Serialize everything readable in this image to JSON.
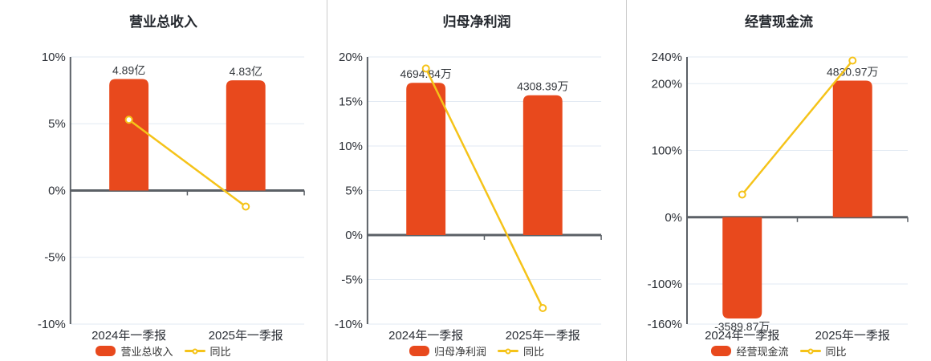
{
  "colors": {
    "bar": "#e8491d",
    "line": "#f5c319",
    "grid_line": "#e2eaf3",
    "axis_line": "#5b6066",
    "zero_line": "#5b6066",
    "separator": "#cccccc",
    "title_text": "#24282e",
    "tick_text": "#2b2f36",
    "value_text": "#34383d",
    "legend_text": "#333333",
    "background": "#ffffff"
  },
  "chart_data": [
    {
      "type": "bar",
      "title": "营业总收入",
      "categories": [
        "2024年一季报",
        "2025年一季报"
      ],
      "bar_series": {
        "name": "营业总收入",
        "value_labels": [
          "4.89亿",
          "4.83亿"
        ],
        "plotted_pct": [
          8.35,
          8.25
        ]
      },
      "line_series": {
        "name": "同比",
        "values_pct": [
          5.3,
          -1.2
        ]
      },
      "y_axis": {
        "unit": "%",
        "min": -10,
        "max": 10,
        "ticks": [
          -10,
          -5,
          0,
          5,
          10
        ]
      },
      "legend": [
        "营业总收入",
        "同比"
      ],
      "grid": true,
      "legend_position": "bottom"
    },
    {
      "type": "bar",
      "title": "归母净利润",
      "categories": [
        "2024年一季报",
        "2025年一季报"
      ],
      "bar_series": {
        "name": "归母净利润",
        "value_labels": [
          "4694.84万",
          "4308.39万"
        ],
        "plotted_pct": [
          17.1,
          15.7
        ]
      },
      "line_series": {
        "name": "同比",
        "values_pct": [
          18.7,
          -8.2
        ]
      },
      "y_axis": {
        "unit": "%",
        "min": -10,
        "max": 20,
        "ticks": [
          -10,
          -5,
          0,
          5,
          10,
          15,
          20
        ]
      },
      "legend": [
        "归母净利润",
        "同比"
      ],
      "grid": true,
      "legend_position": "bottom"
    },
    {
      "type": "bar",
      "title": "经营现金流",
      "categories": [
        "2024年一季报",
        "2025年一季报"
      ],
      "bar_series": {
        "name": "经营现金流",
        "value_labels": [
          "-3589.87万",
          "4830.97万"
        ],
        "plotted_pct": [
          -151.6,
          204.6
        ]
      },
      "line_series": {
        "name": "同比",
        "values_pct": [
          34,
          234.6
        ]
      },
      "y_axis": {
        "unit": "%",
        "min": -160,
        "max": 240,
        "ticks": [
          -160,
          -100,
          0,
          100,
          200,
          240
        ]
      },
      "legend": [
        "经营现金流",
        "同比"
      ],
      "grid": true,
      "legend_position": "bottom"
    }
  ]
}
